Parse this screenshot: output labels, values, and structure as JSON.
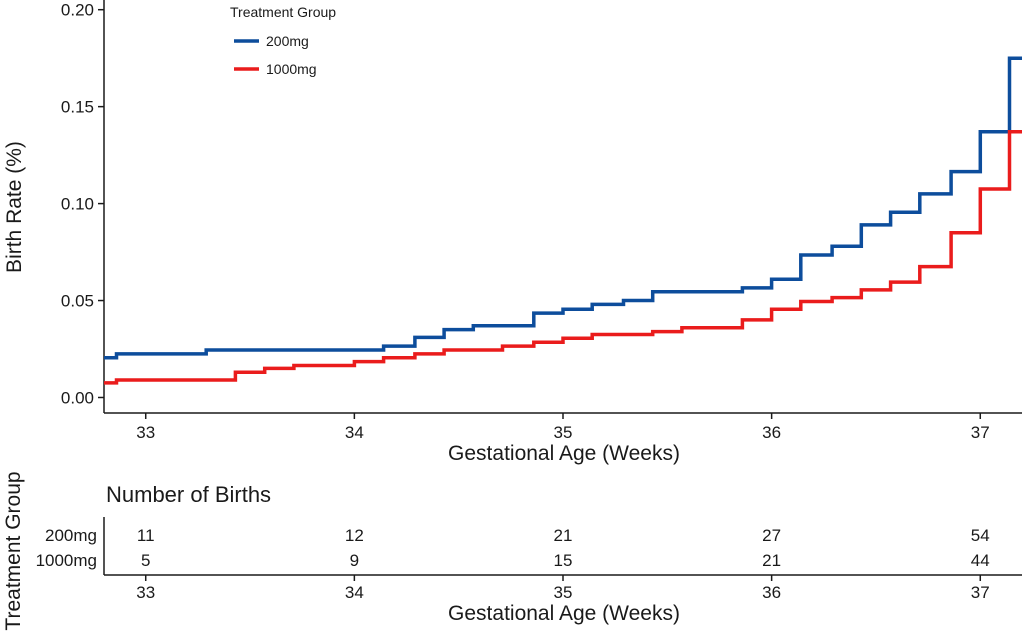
{
  "chart_data": [
    {
      "type": "line",
      "step": true,
      "xlabel": "Gestational Age (Weeks)",
      "ylabel": "Birth Rate (%)",
      "xlim": [
        32.8,
        37.2
      ],
      "ylim": [
        -0.008,
        0.205
      ],
      "x_ticks": [
        "33",
        "34",
        "35",
        "36",
        "37"
      ],
      "y_ticks": [
        "0.00",
        "0.05",
        "0.10",
        "0.15",
        "0.20"
      ],
      "grid": false,
      "legend": {
        "title": "Treatment Group",
        "placement": "top-left",
        "entries": [
          "200mg",
          "1000mg"
        ]
      },
      "series": [
        {
          "name": "200mg",
          "color": "#0d4d9c",
          "points": [
            [
              32.8,
              0.0205
            ],
            [
              32.86,
              0.0225
            ],
            [
              33.29,
              0.0245
            ],
            [
              34.14,
              0.0265
            ],
            [
              34.29,
              0.031
            ],
            [
              34.43,
              0.035
            ],
            [
              34.57,
              0.037
            ],
            [
              34.86,
              0.0435
            ],
            [
              35.0,
              0.0455
            ],
            [
              35.14,
              0.048
            ],
            [
              35.29,
              0.05
            ],
            [
              35.43,
              0.0545
            ],
            [
              35.71,
              0.0545
            ],
            [
              35.86,
              0.0565
            ],
            [
              36.0,
              0.061
            ],
            [
              36.14,
              0.0735
            ],
            [
              36.29,
              0.078
            ],
            [
              36.43,
              0.089
            ],
            [
              36.57,
              0.0955
            ],
            [
              36.71,
              0.105
            ],
            [
              36.86,
              0.1165
            ],
            [
              37.0,
              0.137
            ],
            [
              37.14,
              0.175
            ],
            [
              37.2,
              0.175
            ]
          ]
        },
        {
          "name": "1000mg",
          "color": "#ea1c1c",
          "points": [
            [
              32.8,
              0.0075
            ],
            [
              32.86,
              0.009
            ],
            [
              33.43,
              0.013
            ],
            [
              33.57,
              0.015
            ],
            [
              33.71,
              0.0165
            ],
            [
              34.0,
              0.0185
            ],
            [
              34.14,
              0.0205
            ],
            [
              34.29,
              0.0225
            ],
            [
              34.43,
              0.0245
            ],
            [
              34.71,
              0.0265
            ],
            [
              34.86,
              0.0285
            ],
            [
              35.0,
              0.0305
            ],
            [
              35.14,
              0.0325
            ],
            [
              35.43,
              0.034
            ],
            [
              35.57,
              0.036
            ],
            [
              35.86,
              0.04
            ],
            [
              36.0,
              0.0455
            ],
            [
              36.14,
              0.0495
            ],
            [
              36.29,
              0.0515
            ],
            [
              36.43,
              0.0555
            ],
            [
              36.57,
              0.0595
            ],
            [
              36.71,
              0.0675
            ],
            [
              36.86,
              0.085
            ],
            [
              37.0,
              0.1075
            ],
            [
              37.14,
              0.137
            ],
            [
              37.2,
              0.137
            ]
          ]
        }
      ]
    },
    {
      "type": "table",
      "title": "Number of Births",
      "xlabel": "Gestational Age (Weeks)",
      "ylabel": "Treatment Group",
      "x_ticks": [
        "33",
        "34",
        "35",
        "36",
        "37"
      ],
      "rows": [
        {
          "label": "200mg",
          "color": "#0d4d9c",
          "values": [
            "11",
            "12",
            "21",
            "27",
            "54"
          ]
        },
        {
          "label": "1000mg",
          "color": "#ea1c1c",
          "values": [
            "5",
            "9",
            "15",
            "21",
            "44"
          ]
        }
      ]
    }
  ]
}
